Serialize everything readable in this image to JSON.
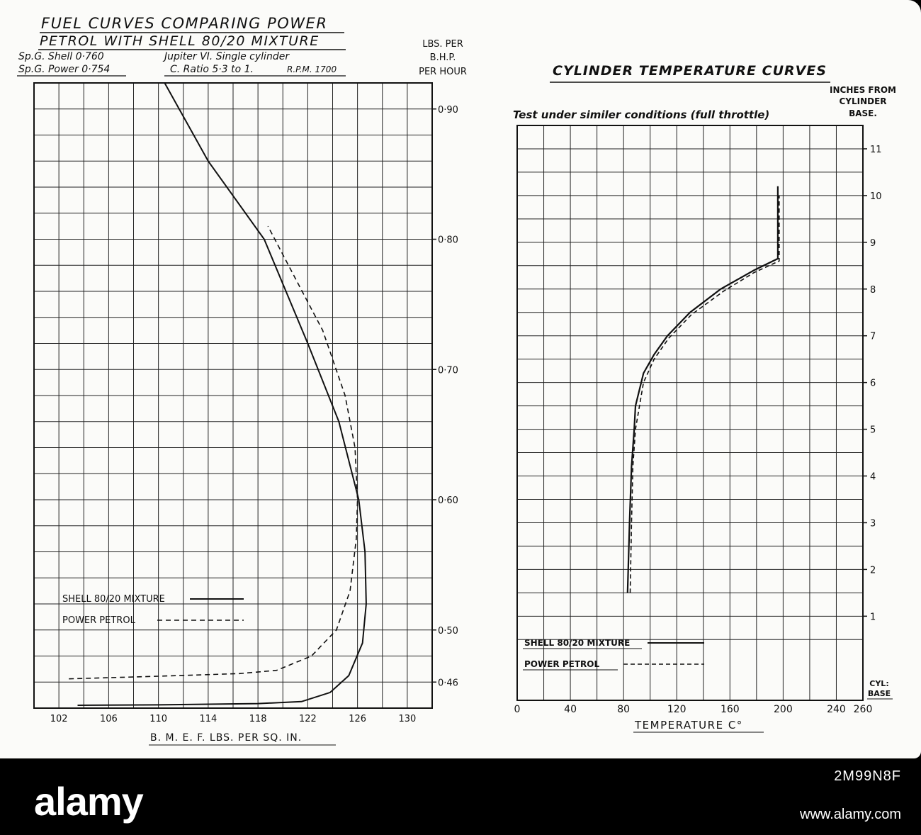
{
  "left_header": {
    "title_line1": "FUEL CURVES COMPARING POWER",
    "title_line2": "PETROL WITH SHELL 80/20 MIXTURE",
    "spg_shell": "Sp.G. Shell 0·760",
    "spg_power": "Sp.G. Power 0·754",
    "engine": "Jupiter VI. Single cylinder",
    "ratio": "C. Ratio 5·3 to 1.",
    "rpm": "R.P.M. 1700",
    "ylabel_lines": [
      "LBS. PER",
      "B.H.P.",
      "PER HOUR"
    ]
  },
  "right_header": {
    "title": "CYLINDER TEMPERATURE CURVES",
    "subtitle": "Test under similer conditions (full throttle)",
    "ylabel_lines": [
      "INCHES FROM",
      "CYLINDER",
      "BASE."
    ]
  },
  "watermark": {
    "logo": "alamy",
    "image_id": "2M99N8F",
    "site": "www.alamy.com"
  },
  "chart_data": [
    {
      "type": "line",
      "title": "FUEL CURVES COMPARING POWER PETROL WITH SHELL 80/20 MIXTURE",
      "xlabel": "B. M. E. F.   LBS. PER SQ. IN.",
      "ylabel": "LBS. PER B.H.P. PER HOUR",
      "xlim": [
        100,
        132
      ],
      "ylim": [
        0.44,
        0.92
      ],
      "x_ticks": [
        102,
        106,
        110,
        114,
        118,
        122,
        126,
        130
      ],
      "y_ticks": [
        {
          "value": 0.46,
          "label": "0·46"
        },
        {
          "value": 0.5,
          "label": "0·50"
        },
        {
          "value": 0.6,
          "label": "0·60"
        },
        {
          "value": 0.7,
          "label": "0·70"
        },
        {
          "value": 0.8,
          "label": "0·80"
        },
        {
          "value": 0.9,
          "label": "0·90"
        }
      ],
      "grid": true,
      "legend_position": "lower-left",
      "series": [
        {
          "name": "SHELL 80/20 MIXTURE",
          "style": "solid",
          "x": [
            103.5,
            110,
            118,
            121.5,
            123.8,
            125.3,
            126.4,
            126.7,
            126.6,
            126.1,
            124.5,
            122,
            118.5,
            114,
            110.5
          ],
          "y": [
            0.4422,
            0.4425,
            0.4435,
            0.445,
            0.452,
            0.465,
            0.49,
            0.52,
            0.56,
            0.6,
            0.66,
            0.72,
            0.8,
            0.86,
            0.92
          ]
        },
        {
          "name": "POWER PETROL",
          "style": "dashed",
          "x": [
            102.8,
            110,
            116.5,
            119.5,
            122.3,
            124.3,
            125.4,
            125.9,
            126,
            125.8,
            125,
            123.2,
            121,
            118.8
          ],
          "y": [
            0.4625,
            0.4645,
            0.4665,
            0.469,
            0.48,
            0.5,
            0.53,
            0.57,
            0.6,
            0.64,
            0.68,
            0.73,
            0.77,
            0.81
          ]
        }
      ]
    },
    {
      "type": "line",
      "title": "CYLINDER TEMPERATURE CURVES",
      "subtitle": "Test under similer conditions (full throttle)",
      "xlabel": "TEMPERATURE C°",
      "ylabel": "INCHES FROM CYLINDER BASE.",
      "xlim": [
        0,
        260
      ],
      "ylim": [
        -0.8,
        11.5
      ],
      "x_ticks": [
        0,
        40,
        80,
        120,
        160,
        200,
        240,
        260
      ],
      "y_ticks": [
        1,
        2,
        3,
        4,
        5,
        6,
        7,
        8,
        9,
        10,
        11
      ],
      "y_base_label": [
        "CYL:",
        "BASE"
      ],
      "grid": true,
      "legend_position": "lower-left",
      "series": [
        {
          "name": "SHELL 80/20 MIXTURE",
          "style": "solid",
          "x": [
            83,
            84.5,
            86,
            88,
            89,
            95,
            103,
            113,
            130,
            153,
            178,
            196,
            196
          ],
          "y": [
            1.5,
            3.0,
            4.2,
            5.0,
            5.5,
            6.2,
            6.6,
            7.0,
            7.5,
            8.0,
            8.4,
            8.65,
            10.2
          ]
        },
        {
          "name": "POWER PETROL",
          "style": "dashed",
          "x": [
            85,
            86,
            87,
            89,
            95,
            103,
            114,
            131,
            155,
            178,
            197,
            197
          ],
          "y": [
            1.5,
            3.0,
            4.2,
            5.0,
            6.0,
            6.5,
            6.95,
            7.45,
            7.95,
            8.35,
            8.6,
            10.0
          ]
        }
      ]
    }
  ]
}
